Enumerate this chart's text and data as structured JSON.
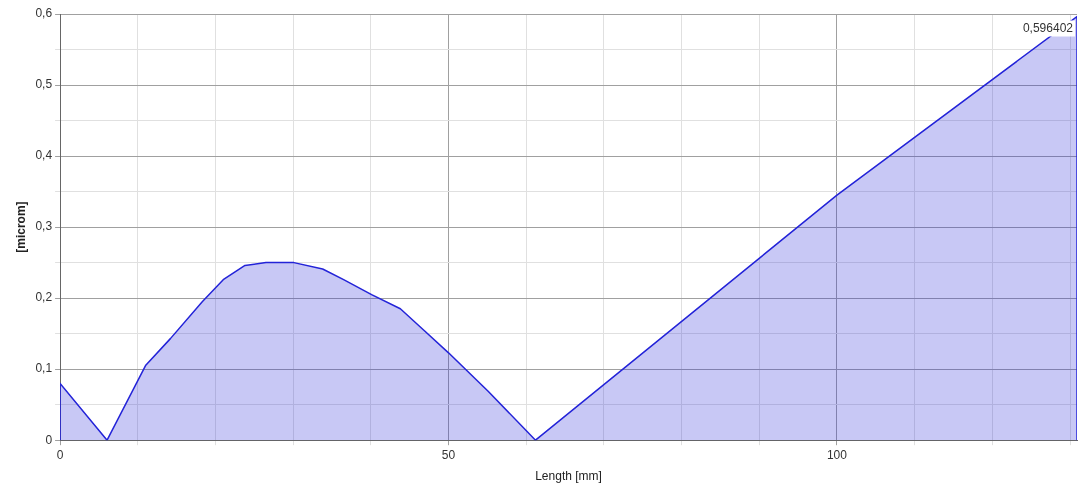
{
  "chart_data": {
    "type": "area",
    "xlabel": "Length [mm]",
    "ylabel": "[microm]",
    "x": [
      0,
      0,
      6.05,
      11,
      14.2,
      18.3,
      21,
      23.8,
      26.5,
      30.1,
      33.8,
      36.5,
      40.1,
      43.8,
      46.9,
      50,
      55.1,
      61.2,
      100,
      130.9,
      130.9
    ],
    "series": [
      {
        "color": "#2323d8",
        "values": [
          0,
          0.08,
          0,
          0.105,
          0.143,
          0.195,
          0.226,
          0.246,
          0.25,
          0.25,
          0.241,
          0.226,
          0.205,
          0.185,
          0.154,
          0.123,
          0.069,
          0,
          0.345,
          0.596402,
          0
        ]
      }
    ],
    "xlim": [
      0,
      130.9
    ],
    "xticks": [
      0,
      {
        "value": 10,
        "label": null
      },
      {
        "value": 20,
        "label": null
      },
      {
        "value": 30,
        "label": null
      },
      {
        "value": 40,
        "label": null
      },
      50,
      {
        "value": 60,
        "label": null
      },
      {
        "value": 70,
        "label": null
      },
      {
        "value": 80,
        "label": null
      },
      {
        "value": 90,
        "label": null
      },
      100,
      {
        "value": 110,
        "label": null
      },
      {
        "value": 120,
        "label": null
      },
      {
        "value": 130,
        "label": null
      }
    ],
    "ylim": [
      0,
      0.6
    ],
    "yticks": [
      0,
      {
        "value": 0.05,
        "label": null
      },
      {
        "value": 0.1,
        "label": "0,1"
      },
      {
        "value": 0.15,
        "label": null
      },
      {
        "value": 0.2,
        "label": "0,2"
      },
      {
        "value": 0.25,
        "label": null
      },
      {
        "value": 0.3,
        "label": "0,3"
      },
      {
        "value": 0.35,
        "label": null
      },
      {
        "value": 0.4,
        "label": "0,4"
      },
      {
        "value": 0.45,
        "label": null
      },
      {
        "value": 0.5,
        "label": "0,5"
      },
      {
        "value": 0.55,
        "label": null
      },
      {
        "value": 0.6,
        "label": "0,6"
      }
    ],
    "grid": true,
    "legend": false,
    "marker": "none",
    "line_style": "solid",
    "annotations": [
      {
        "text": "0,596402",
        "x": 130.9,
        "y": 0.596402
      }
    ]
  }
}
